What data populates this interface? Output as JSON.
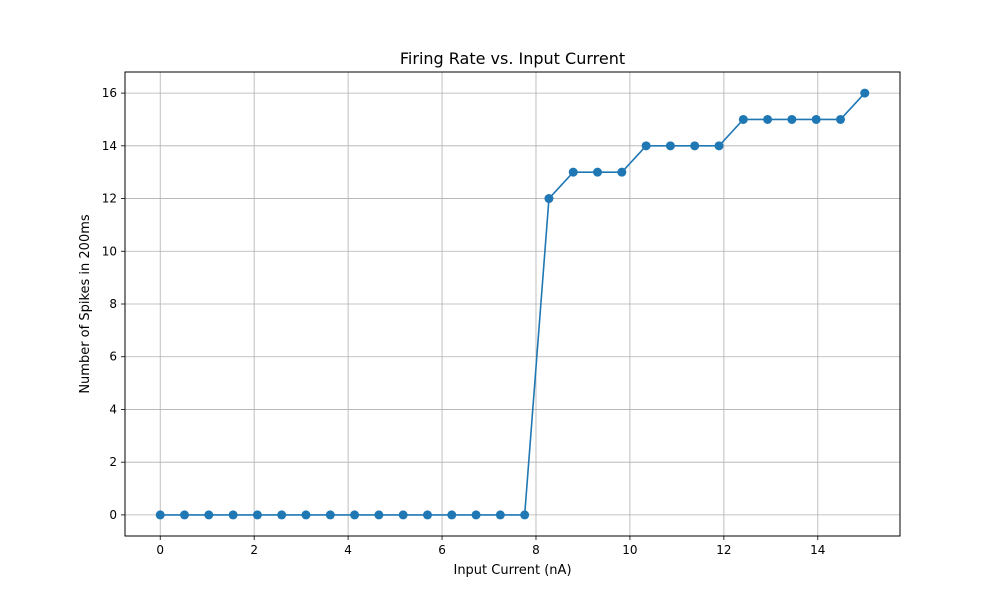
{
  "chart_data": {
    "type": "line",
    "title": "Firing Rate vs. Input Current",
    "xlabel": "Input Current (nA)",
    "ylabel": "Number of Spikes in 200ms",
    "xlim": [
      -0.75,
      15.75
    ],
    "ylim": [
      -0.8,
      16.8
    ],
    "xticks": [
      0,
      2,
      4,
      6,
      8,
      10,
      12,
      14
    ],
    "yticks": [
      0,
      2,
      4,
      6,
      8,
      10,
      12,
      14,
      16
    ],
    "grid": true,
    "series": [
      {
        "color": "#1f77b4",
        "marker": "circle",
        "x": [
          0,
          0.517,
          1.034,
          1.552,
          2.069,
          2.586,
          3.103,
          3.621,
          4.138,
          4.655,
          5.172,
          5.69,
          6.207,
          6.724,
          7.241,
          7.759,
          8.276,
          8.793,
          9.31,
          9.828,
          10.345,
          10.862,
          11.379,
          11.897,
          12.414,
          12.931,
          13.448,
          13.966,
          14.483,
          15.0
        ],
        "y": [
          0,
          0,
          0,
          0,
          0,
          0,
          0,
          0,
          0,
          0,
          0,
          0,
          0,
          0,
          0,
          0,
          12,
          13,
          13,
          13,
          14,
          14,
          14,
          14,
          15,
          15,
          15,
          15,
          15,
          16
        ]
      }
    ]
  }
}
